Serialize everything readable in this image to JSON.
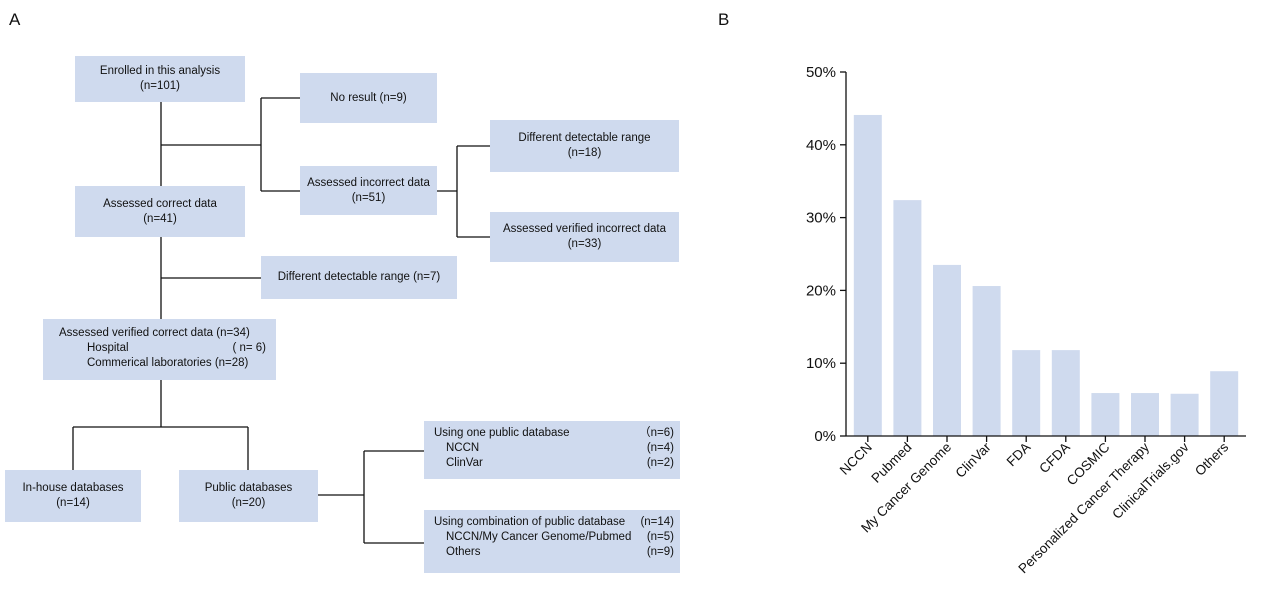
{
  "panel_labels": {
    "a": "A",
    "b": "B"
  },
  "flowchart": {
    "enrolled": {
      "title": "Enrolled in this analysis",
      "n": "(n=101)"
    },
    "no_result": {
      "title": "No result   (n=9)"
    },
    "assessed_incorrect": {
      "title": "Assessed incorrect data",
      "n": "(n=51)"
    },
    "diff_range_18": {
      "title": "Different detectable range",
      "n": "(n=18)"
    },
    "verified_incorrect": {
      "title": "Assessed verified incorrect data",
      "n": "(n=33)"
    },
    "assessed_correct": {
      "title": "Assessed correct data",
      "n": "(n=41)"
    },
    "diff_range_7": {
      "title": "Different detectable range  (n=7)"
    },
    "verified_correct": {
      "title": "Assessed verified correct data (n=34)",
      "hospital": "Hospital",
      "hospital_n": "( n= 6)",
      "commercial": "Commerical laboratories (n=28)"
    },
    "inhouse": {
      "title": "In-house databases",
      "n": "(n=14)"
    },
    "public": {
      "title": "Public databases",
      "n": "(n=20)"
    },
    "one_db": {
      "title": "Using one public database",
      "title_n": "（n=6)",
      "r1": "NCCN",
      "r1_n": "(n=4)",
      "r2": "ClinVar",
      "r2_n": "(n=2)"
    },
    "combo_db": {
      "title": "Using combination of public database",
      "title_n": "(n=14)",
      "r1": "NCCN/My Cancer Genome/Pubmed",
      "r1_n": "(n=5)",
      "r2": "Others",
      "r2_n": "(n=9)"
    }
  },
  "chart_data": {
    "type": "bar",
    "categories": [
      "NCCN",
      "Pubmed",
      "My Cancer Genome",
      "ClinVar",
      "FDA",
      "CFDA",
      "COSMIC",
      "Personalized Cancer Therapy",
      "ClinicalTrials.gov",
      "Others"
    ],
    "values": [
      44.1,
      32.4,
      23.5,
      20.6,
      11.8,
      11.8,
      5.9,
      5.9,
      5.8,
      8.9
    ],
    "ylim": [
      0,
      50
    ],
    "yticks": [
      "0%",
      "10%",
      "20%",
      "30%",
      "40%",
      "50%"
    ],
    "ytick_values": [
      0,
      10,
      20,
      30,
      40,
      50
    ],
    "bar_color": "#cfdaee",
    "grid": false
  }
}
